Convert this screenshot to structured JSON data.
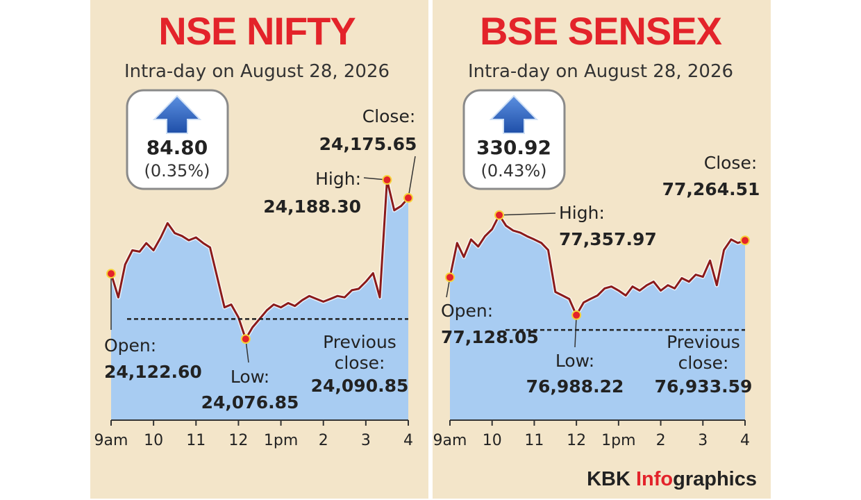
{
  "chart_data": [
    {
      "type": "line",
      "title": "NSE NIFTY",
      "subtitle": "Intra-day on August 28, 2026",
      "change": "84.80",
      "change_percent": "(0.35%)",
      "color": "#8b1a1a",
      "area_color": "#a8ccf2",
      "x": [
        9,
        9.17,
        9.33,
        9.5,
        9.67,
        9.83,
        10,
        10.17,
        10.33,
        10.5,
        10.67,
        10.83,
        11,
        11.17,
        11.33,
        11.5,
        11.67,
        11.83,
        12,
        12.17,
        12.33,
        12.5,
        12.67,
        12.83,
        13,
        13.17,
        13.33,
        13.5,
        13.67,
        13.83,
        14,
        14.17,
        14.33,
        14.5,
        14.67,
        14.83,
        15,
        15.17,
        15.33,
        15.5,
        15.67,
        15.83,
        16
      ],
      "values": [
        24122.6,
        24106,
        24129,
        24139,
        24138,
        24144,
        24139,
        24148,
        24158,
        24151,
        24149,
        24146,
        24148,
        24144,
        24141,
        24120,
        24099,
        24101,
        24092,
        24076.85,
        24085,
        24091,
        24097,
        24101,
        24099,
        24102,
        24100,
        24104,
        24107,
        24105,
        24103,
        24105,
        24107,
        24106,
        24111,
        24112,
        24117,
        24123,
        24106,
        24188.3,
        24167,
        24170,
        24175.65
      ],
      "xlim": [
        9,
        16
      ],
      "xticks": [
        {
          "value": 9,
          "label": "9am"
        },
        10,
        11,
        12,
        {
          "value": 13,
          "label": "1pm"
        },
        {
          "value": 14,
          "label": "2"
        },
        {
          "value": 15,
          "label": "3"
        },
        {
          "value": 16,
          "label": "4"
        }
      ],
      "ylim": [
        24020,
        24200
      ],
      "annotations": [
        {
          "label": "Open:",
          "value": 24122.6,
          "value_label": "24,122.60"
        },
        {
          "label": "High:",
          "value": 24188.3,
          "value_label": "24,188.30"
        },
        {
          "label": "Low:",
          "value": 24076.85,
          "value_label": "24,076.85"
        },
        {
          "label": "Close:",
          "value": 24175.65,
          "value_label": "24,175.65"
        },
        {
          "label": "Previous close:",
          "value": 24090.85,
          "value_label": "24,090.85"
        }
      ]
    },
    {
      "type": "line",
      "title": "BSE SENSEX",
      "subtitle": "Intra-day on August 28, 2026",
      "change": "330.92",
      "change_percent": "(0.43%)",
      "color": "#8b1a1a",
      "area_color": "#a8ccf2",
      "x": [
        9,
        9.17,
        9.33,
        9.5,
        9.67,
        9.83,
        10,
        10.17,
        10.33,
        10.5,
        10.67,
        10.83,
        11,
        11.17,
        11.33,
        11.5,
        11.67,
        11.83,
        12,
        12.17,
        12.33,
        12.5,
        12.67,
        12.83,
        13,
        13.17,
        13.33,
        13.5,
        13.67,
        13.83,
        14,
        14.17,
        14.33,
        14.5,
        14.67,
        14.83,
        15,
        15.17,
        15.33,
        15.5,
        15.67,
        15.83,
        16
      ],
      "values": [
        77128.05,
        77255,
        77203,
        77268,
        77242,
        77280,
        77306,
        77357.97,
        77319,
        77301,
        77293,
        77280,
        77268,
        77255,
        77229,
        77074,
        77061,
        77048,
        76988.22,
        77035,
        77048,
        77061,
        77087,
        77094,
        77079,
        77061,
        77094,
        77079,
        77099,
        77112,
        77079,
        77099,
        77087,
        77125,
        77112,
        77138,
        77130,
        77190,
        77099,
        77229,
        77268,
        77255,
        77264.51
      ],
      "xlim": [
        9,
        16
      ],
      "xticks": [
        {
          "value": 9,
          "label": "9am"
        },
        10,
        11,
        12,
        {
          "value": 13,
          "label": "1pm"
        },
        {
          "value": 14,
          "label": "2"
        },
        {
          "value": 15,
          "label": "3"
        },
        {
          "value": 16,
          "label": "4"
        }
      ],
      "ylim": [
        76600,
        77550
      ],
      "annotations": [
        {
          "label": "Open:",
          "value": 77128.05,
          "value_label": "77,128.05"
        },
        {
          "label": "High:",
          "value": 77357.97,
          "value_label": "77,357.97"
        },
        {
          "label": "Low:",
          "value": 76988.22,
          "value_label": "76,988.22"
        },
        {
          "label": "Close:",
          "value": 77264.51,
          "value_label": "77,264.51"
        },
        {
          "label": "Previous close:",
          "value": 76933.59,
          "value_label": "76,933.59"
        }
      ]
    }
  ],
  "credit": {
    "brand": "KBK",
    "highlight": "Info",
    "rest": "graphics"
  }
}
